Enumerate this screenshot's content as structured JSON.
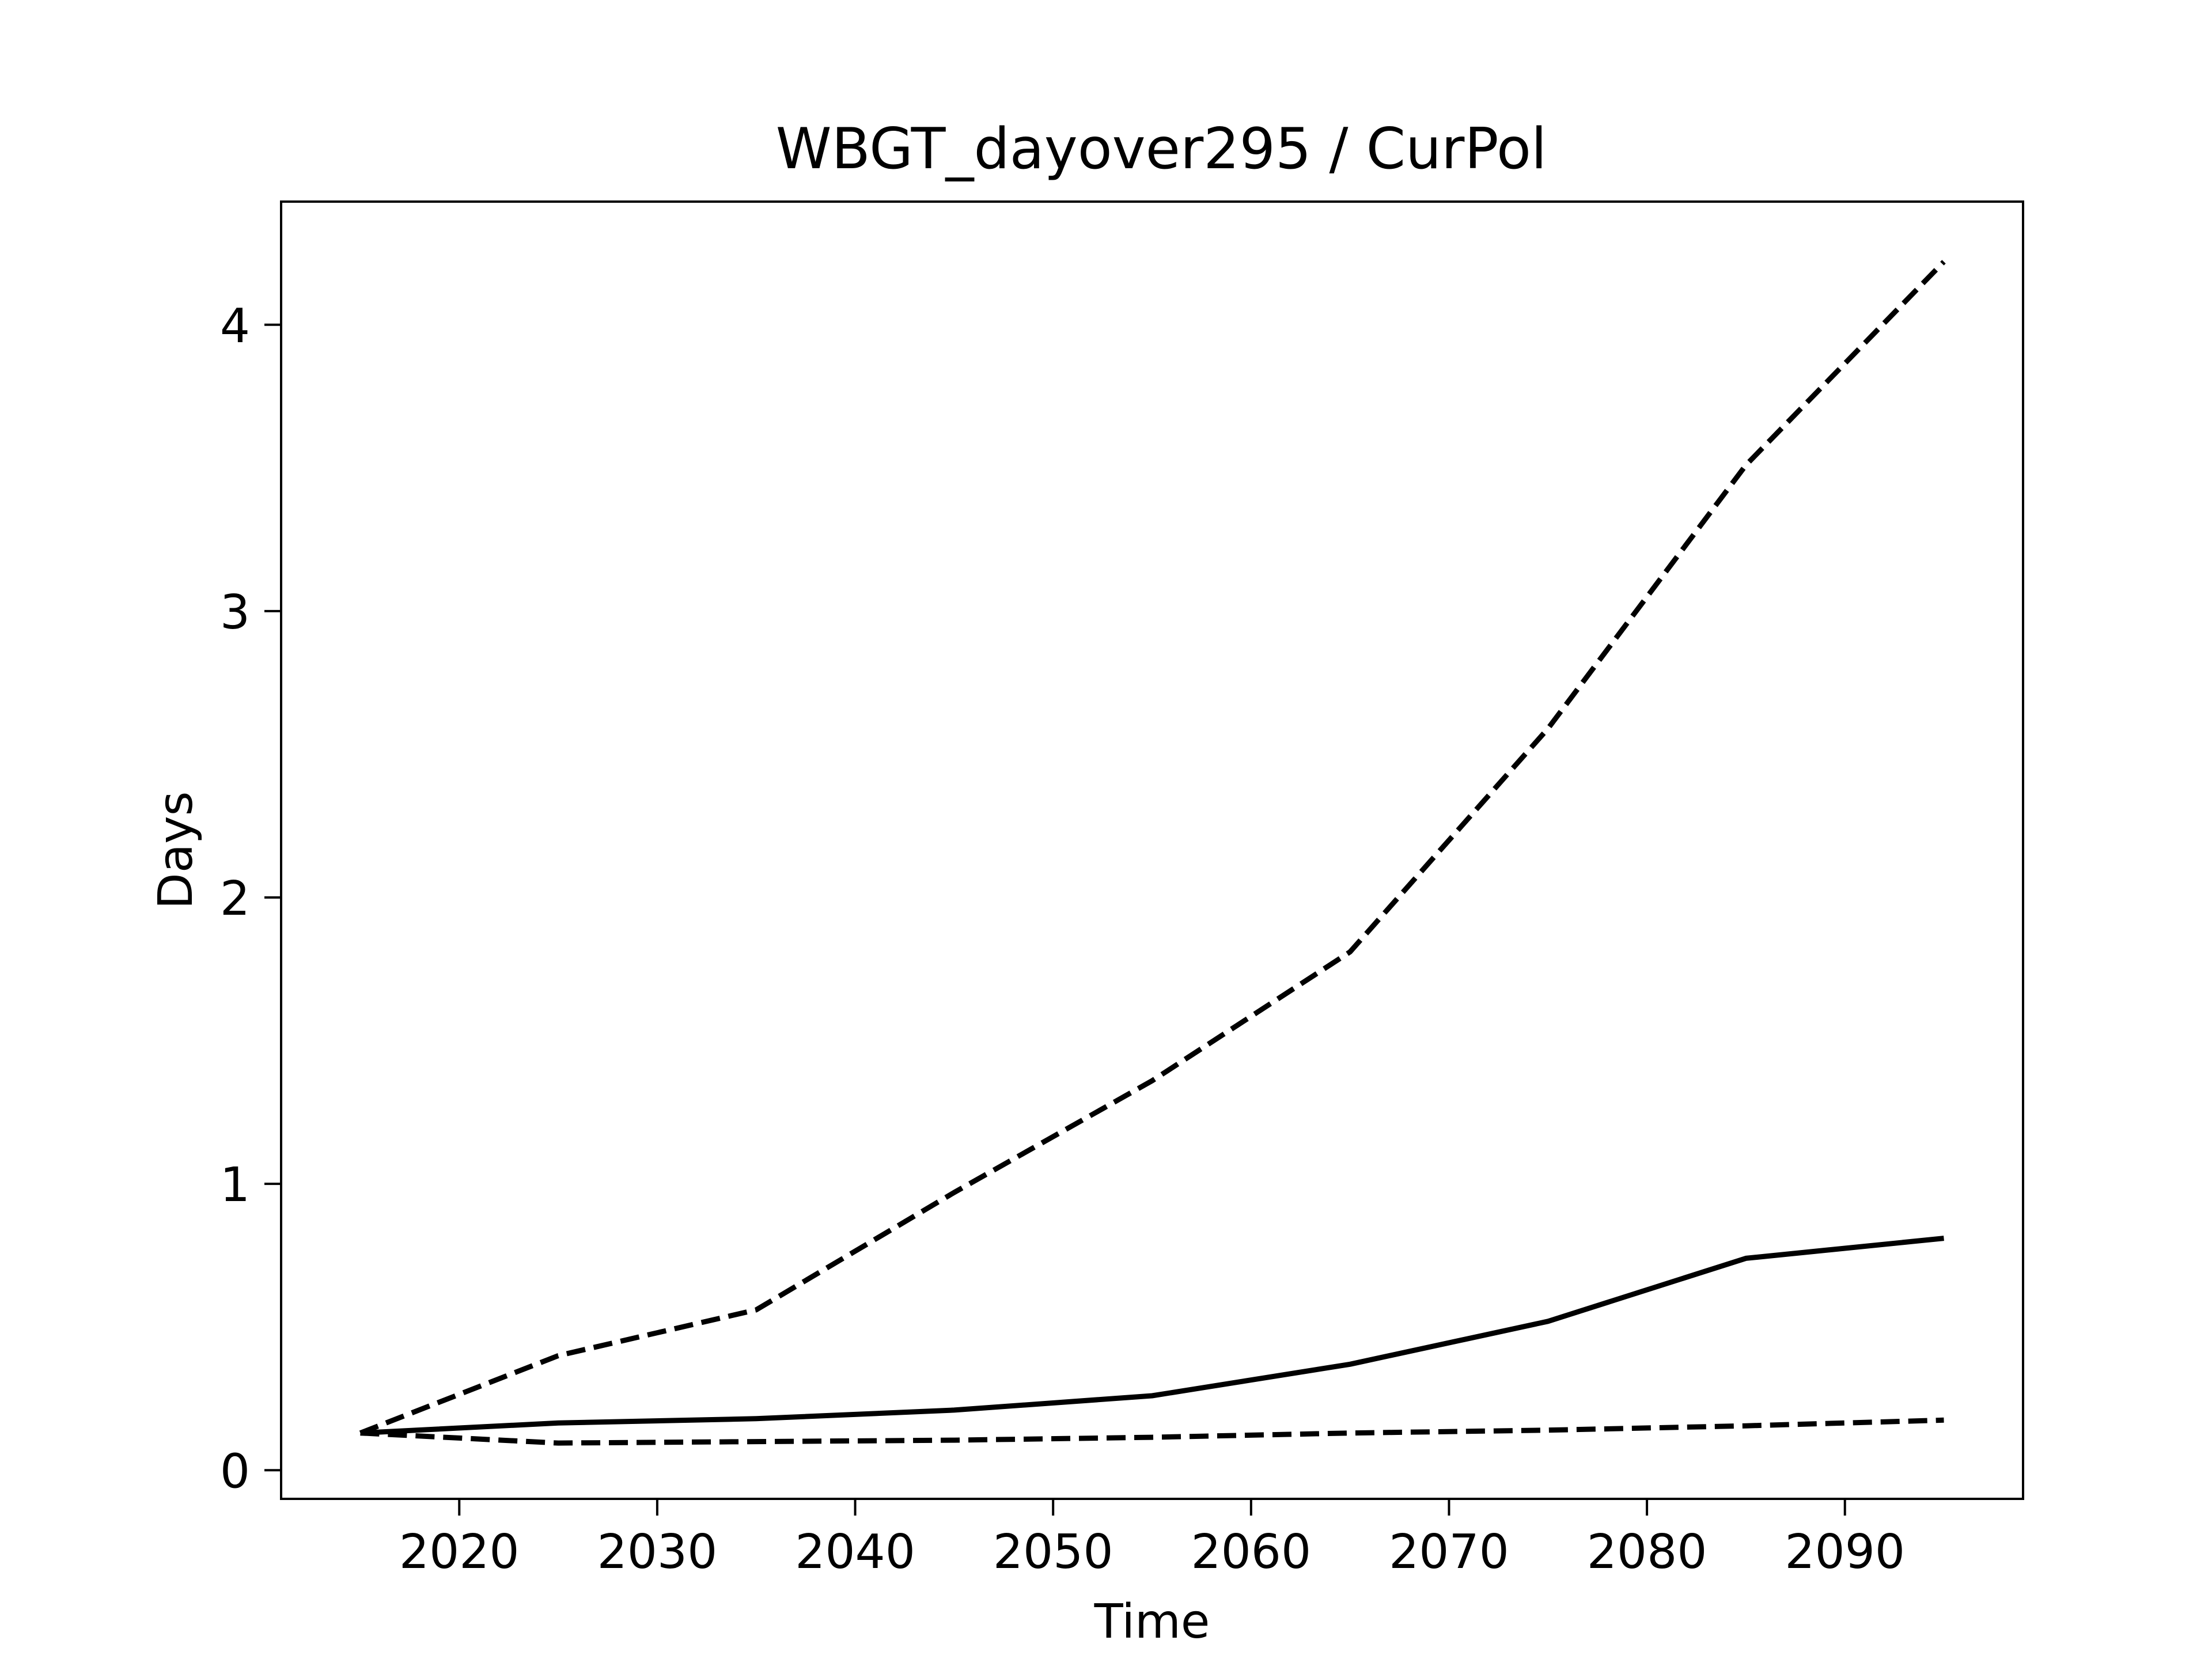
{
  "chart_data": {
    "type": "line",
    "title": "WBGT_dayover295 / CurPol",
    "xlabel": "Time",
    "ylabel": "Days",
    "x": [
      2015,
      2025,
      2035,
      2045,
      2055,
      2065,
      2075,
      2085,
      2095
    ],
    "xlim": [
      2011,
      2099
    ],
    "ylim": [
      -0.1,
      4.43
    ],
    "xticks": [
      2020,
      2030,
      2040,
      2050,
      2060,
      2070,
      2080,
      2090
    ],
    "yticks": [
      0,
      1,
      2,
      3,
      4
    ],
    "grid": false,
    "legend": "none",
    "series": [
      {
        "style": "dashed",
        "color": "#000000",
        "values": [
          0.13,
          0.4,
          0.56,
          0.97,
          1.36,
          1.81,
          2.59,
          3.51,
          4.22
        ]
      },
      {
        "style": "solid",
        "color": "#000000",
        "values": [
          0.13,
          0.165,
          0.18,
          0.21,
          0.26,
          0.37,
          0.52,
          0.74,
          0.81
        ]
      },
      {
        "style": "dashed",
        "color": "#000000",
        "values": [
          0.13,
          0.095,
          0.1,
          0.105,
          0.115,
          0.13,
          0.14,
          0.155,
          0.175
        ]
      }
    ]
  }
}
